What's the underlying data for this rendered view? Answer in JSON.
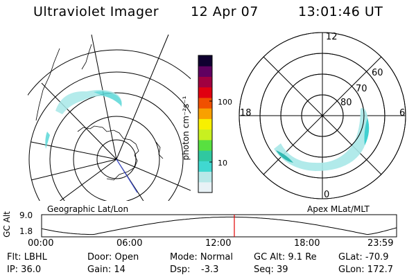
{
  "header": {
    "instrument": "Ultraviolet Imager",
    "date": "12 Apr 07",
    "time": "13:01:46 UT"
  },
  "left_panel": {
    "caption": "Geographic Lat/Lon"
  },
  "right_panel": {
    "caption": "Apex MLat/MLT",
    "mlt_labels": [
      "12",
      "18",
      "6",
      "0"
    ],
    "lat_labels": [
      "60",
      "70",
      "80"
    ]
  },
  "colorbar": {
    "unit_label": "photon cm⁻²s⁻¹",
    "ticks": [
      "100",
      "10"
    ],
    "scale": "log",
    "colors": [
      "#e8f2f6",
      "#b8e8e8",
      "#40d8d0",
      "#30c8a0",
      "#58e040",
      "#c8f020",
      "#f8f000",
      "#f8a000",
      "#f05000",
      "#e00010",
      "#a00040",
      "#600060",
      "#100030"
    ]
  },
  "altitude_plot": {
    "ylabel": "GC Alt",
    "yticks": [
      "9.0",
      "1.8"
    ],
    "xticks": [
      "00:00",
      "06:00",
      "12:00",
      "18:00",
      "23:59"
    ],
    "marker_time_hours": 13.03,
    "marker_color": "#e00000"
  },
  "status": {
    "flt": "Flt: LBHL",
    "door": "Door: Open",
    "mode": "Mode: Normal",
    "gc_alt": "GC Alt: 9.1 Re",
    "glat": "GLat: -70.9",
    "ip": "IP: 36.0",
    "gain": "Gain: 14",
    "dsp_label": "Dsp:",
    "dsp_value": "-3.3",
    "seq": "Seq: 39",
    "glon": "GLon: 172.7"
  }
}
